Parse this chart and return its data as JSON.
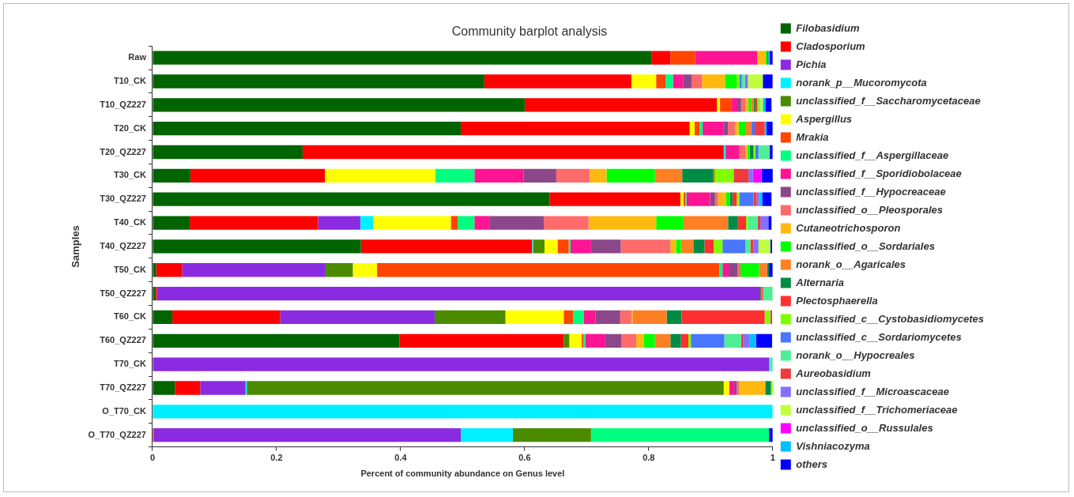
{
  "chart_data": {
    "type": "bar",
    "title": "Community barplot analysis",
    "xlabel": "Percent of community abundance on Genus level",
    "ylabel": "Samples",
    "orientation": "horizontal",
    "stacked": true,
    "legend": "right",
    "xlim": [
      0,
      1
    ],
    "xticks": [
      0,
      0.2,
      0.4,
      0.6,
      0.8,
      1
    ],
    "categories": [
      "Raw",
      "T10_CK",
      "T10_QZ227",
      "T20_CK",
      "T20_QZ227",
      "T30_CK",
      "T30_QZ227",
      "T40_CK",
      "T40_QZ227",
      "T50_CK",
      "T50_QZ227",
      "T60_CK",
      "T60_QZ227",
      "T70_CK",
      "T70_QZ227",
      "O_T70_CK",
      "O_T70_QZ227"
    ],
    "series": [
      {
        "name": "Filobasidium",
        "color": "#006400",
        "values": [
          0.805,
          0.535,
          0.6,
          0.497,
          0.242,
          0.061,
          0.64,
          0.06,
          0.336,
          0.006,
          0.004,
          0.032,
          0.398,
          0,
          0.036,
          0,
          0
        ]
      },
      {
        "name": "Cladosporium",
        "color": "#ff0000",
        "values": [
          0.03,
          0.237,
          0.31,
          0.369,
          0.679,
          0.217,
          0.211,
          0.207,
          0.276,
          0.042,
          0.003,
          0.174,
          0.265,
          0,
          0.041,
          0,
          0.002
        ]
      },
      {
        "name": "Pichia",
        "color": "#8a2be2",
        "values": [
          0,
          0,
          0,
          0,
          0,
          0,
          0,
          0.068,
          0,
          0.231,
          0.973,
          0.249,
          0,
          0.994,
          0.073,
          0,
          0.495
        ]
      },
      {
        "name": "norank_p__Mucoromycota",
        "color": "#00f0ff",
        "values": [
          0,
          0,
          0,
          0,
          0.003,
          0,
          0,
          0.021,
          0.002,
          0,
          0,
          0,
          0,
          0.002,
          0.002,
          1,
          0.084
        ]
      },
      {
        "name": "unclassified_f__Saccharomycetaceae",
        "color": "#4b8b00",
        "values": [
          0,
          0,
          0,
          0,
          0,
          0,
          0,
          0,
          0.018,
          0.044,
          0.002,
          0.114,
          0.009,
          0,
          0.769,
          0,
          0.126
        ]
      },
      {
        "name": "Aspergillus",
        "color": "#ffff00",
        "values": [
          0,
          0.04,
          0.005,
          0.008,
          0,
          0.178,
          0.005,
          0.125,
          0.021,
          0.039,
          0,
          0.094,
          0.02,
          0,
          0.009,
          0,
          0
        ]
      },
      {
        "name": "Mrakia",
        "color": "#ff4500",
        "values": [
          0.04,
          0.015,
          0.018,
          0.008,
          0,
          0,
          0.003,
          0.011,
          0.018,
          0.552,
          0,
          0.015,
          0.003,
          0,
          0,
          0,
          0
        ]
      },
      {
        "name": "unclassified_f__Aspergillaceae",
        "color": "#00ff7f",
        "values": [
          0,
          0.012,
          0,
          0.005,
          0,
          0.063,
          0.002,
          0.027,
          0.003,
          0.005,
          0,
          0.017,
          0.003,
          0,
          0,
          0,
          0.287
        ]
      },
      {
        "name": "unclassified_f__Sporidiobolaceae",
        "color": "#ff1493",
        "values": [
          0.1,
          0.017,
          0.01,
          0.034,
          0.022,
          0.079,
          0.038,
          0.025,
          0.033,
          0.01,
          0,
          0.019,
          0.032,
          0,
          0.008,
          0,
          0
        ]
      },
      {
        "name": "unclassified_f__Hypocreaceae",
        "color": "#8b4789",
        "values": [
          0,
          0.013,
          0.006,
          0.007,
          0,
          0.053,
          0.008,
          0.087,
          0.048,
          0.014,
          0,
          0.04,
          0.026,
          0,
          0.004,
          0,
          0
        ]
      },
      {
        "name": "unclassified_o__Pleosporales",
        "color": "#ff6a6a",
        "values": [
          0,
          0.017,
          0.007,
          0.011,
          0.01,
          0.054,
          0.005,
          0.072,
          0.08,
          0.005,
          0.003,
          0.018,
          0.024,
          0,
          0.004,
          0,
          0
        ]
      },
      {
        "name": "Cutaneotrichosporon",
        "color": "#ffb90f",
        "values": [
          0.013,
          0.037,
          0.005,
          0.006,
          0.003,
          0.027,
          0.013,
          0.109,
          0.009,
          0,
          0,
          0.002,
          0.012,
          0,
          0.042,
          0,
          0
        ]
      },
      {
        "name": "unclassified_o__Sordariales",
        "color": "#00ff00",
        "values": [
          0.003,
          0.019,
          0.004,
          0.012,
          0.004,
          0.078,
          0.006,
          0.044,
          0.008,
          0.03,
          0,
          0,
          0.018,
          0,
          0,
          0,
          0
        ]
      },
      {
        "name": "norank_o__Agaricales",
        "color": "#ff7f24",
        "values": [
          0,
          0,
          0.004,
          0.008,
          0,
          0.044,
          0,
          0.072,
          0.02,
          0.013,
          0,
          0.055,
          0.025,
          0,
          0,
          0,
          0
        ]
      },
      {
        "name": "Alternaria",
        "color": "#008b45",
        "values": [
          0.002,
          0,
          0.003,
          0,
          0.006,
          0.05,
          0.004,
          0.016,
          0.018,
          0.003,
          0,
          0.024,
          0.017,
          0,
          0.009,
          0,
          0
        ]
      },
      {
        "name": "Plectosphaerella",
        "color": "#ff3030",
        "values": [
          0,
          0,
          0.003,
          0,
          0,
          0.002,
          0.007,
          0.013,
          0.015,
          0,
          0,
          0.134,
          0.012,
          0,
          0,
          0,
          0
        ]
      },
      {
        "name": "unclassified_c__Cystobasidiomycetes",
        "color": "#7fff00",
        "values": [
          0,
          0.004,
          0.003,
          0,
          0.003,
          0.031,
          0.004,
          0.003,
          0.014,
          0,
          0,
          0.009,
          0.004,
          0,
          0.005,
          0,
          0
        ]
      },
      {
        "name": "unclassified_c__Sordariomycetes",
        "color": "#4876ff",
        "values": [
          0,
          0.004,
          0,
          0.006,
          0.005,
          0,
          0.023,
          0,
          0.037,
          0,
          0,
          0,
          0.054,
          0,
          0,
          0,
          0
        ]
      },
      {
        "name": "norank_o__Hypocreales",
        "color": "#4eee94",
        "values": [
          0,
          0.005,
          0.002,
          0,
          0.018,
          0,
          0,
          0.016,
          0.008,
          0,
          0.015,
          0,
          0.027,
          0.004,
          0,
          0,
          0
        ]
      },
      {
        "name": "Aureobasidium",
        "color": "#ee3b3b",
        "values": [
          0,
          0,
          0,
          0.016,
          0,
          0.024,
          0.005,
          0.004,
          0.005,
          0,
          0,
          0.003,
          0.003,
          0,
          0,
          0,
          0
        ]
      },
      {
        "name": "unclassified_f__Microascaceae",
        "color": "#8470ff",
        "values": [
          0,
          0.005,
          0,
          0,
          0,
          0.007,
          0.004,
          0.013,
          0.008,
          0,
          0,
          0,
          0.011,
          0,
          0,
          0,
          0
        ]
      },
      {
        "name": "unclassified_f__Trichomeriaceae",
        "color": "#c0ff3e",
        "values": [
          0,
          0.024,
          0.004,
          0,
          0,
          0,
          0,
          0,
          0.019,
          0,
          0,
          0,
          0,
          0,
          0,
          0,
          0
        ]
      },
      {
        "name": "unclassified_o__Russulales",
        "color": "#ff00ff",
        "values": [
          0,
          0,
          0,
          0,
          0,
          0.014,
          0,
          0,
          0,
          0,
          0,
          0,
          0,
          0,
          0,
          0,
          0
        ]
      },
      {
        "name": "Vishniacozyma",
        "color": "#00bfff",
        "values": [
          0.002,
          0,
          0.004,
          0.003,
          0,
          0,
          0.005,
          0,
          0,
          0,
          0,
          0,
          0.01,
          0,
          0,
          0,
          0
        ]
      },
      {
        "name": "others",
        "color": "#0000ff",
        "values": [
          0.005,
          0.016,
          0.01,
          0.01,
          0.005,
          0.019,
          0.015,
          0.005,
          0.003,
          0.006,
          0,
          null,
          0.026,
          0,
          0,
          0,
          0.006
        ]
      }
    ]
  }
}
